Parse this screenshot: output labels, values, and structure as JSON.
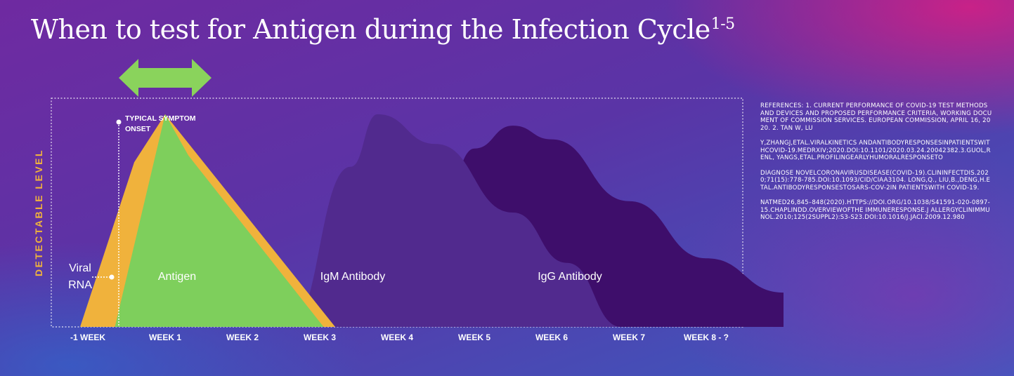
{
  "title": {
    "text": "When to test for Antigen during the Infection Cycle",
    "superscript": "1-5"
  },
  "chart_data": {
    "type": "area",
    "ylabel": "DETECTABLE LEVEL",
    "categories": [
      "-1 WEEK",
      "WEEK 1",
      "WEEK 2",
      "WEEK 3",
      "WEEK 4",
      "WEEK 5",
      "WEEK 6",
      "WEEK 7",
      "WEEK 8 - ?"
    ],
    "series": [
      {
        "name": "IgG Antibody",
        "color": "#3e0e6b",
        "x": [
          3.3,
          4.0,
          4.5,
          5.0,
          6.0,
          7.0,
          8.0,
          8.0
        ],
        "y": [
          0,
          0.78,
          0.88,
          0.82,
          0.55,
          0.3,
          0.15,
          0
        ]
      },
      {
        "name": "IgM Antibody",
        "color": "#512a8e",
        "x": [
          1.6,
          2.4,
          2.75,
          3.5,
          4.5,
          5.2,
          5.9
        ],
        "y": [
          0,
          0.7,
          0.93,
          0.8,
          0.5,
          0.28,
          0
        ]
      },
      {
        "name": "Viral RNA",
        "color": "#f0b23c",
        "x": [
          -1.1,
          -0.4,
          0.0,
          2.2
        ],
        "y": [
          0,
          0.72,
          0.93,
          0
        ]
      },
      {
        "name": "Antigen",
        "color": "#7ecf5c",
        "x": [
          -0.65,
          0.0,
          0.3,
          2.05
        ],
        "y": [
          0,
          0.93,
          0.75,
          0
        ]
      }
    ],
    "annotations": {
      "symptom_onset": {
        "label": "TYPICAL SYMPTOM ONSET",
        "x": -0.6
      },
      "viral_rna_label": "Viral RNA",
      "testing_window": {
        "from": -0.6,
        "to": 0.6,
        "color": "#8ad35c"
      }
    },
    "grid": false,
    "legend": "none"
  },
  "references": [
    "REFERENCES: 1. CURRENT PERFORMANCE OF COVID-19 TEST METHODS AND DEVICES AND PROPOSED PERFORMANCE CRITERIA, WORKING DOCUMENT OF COMMISSION SERVICES. EUROPEAN COMMISSION, APRIL 16, 2020. 2. TAN W, LU",
    "Y,ZHANGJ,ETAL.VIRALKINETICS ANDANTIBODYRESPONSESINPATIENTSWITHCOVID-19.MEDRXIV;2020.DOI:10.1101/2020.03.24.20042382.3.GUOL,RENL, YANGS,ETAL.PROFILINGEARLYHUMORALRESPONSETO",
    "DIAGNOSE NOVELCORONAVIRUSDISEASE(COVID-19).CLININFECTDIS.2020;71(15):778-785.DOI:10.1093/CID/CIAA3104. LONG,Q., LIU,B.,DENG,H.ETAL.ANTIBODYRESPONSESTOSARS-COV-2IN PATIENTSWITH COVID-19.",
    "NATMED26,845–848(2020).HTTPS://DOI.ORG/10.1038/S41591-020-0897-15.CHAPLINDD.OVERVIEWOFTHE IMMUNERESPONSE.J ALLERGYCLINIMMUNOL.2010;125(2SUPPL2):S3-S23.DOI:10.1016/J.JACI.2009.12.980"
  ]
}
